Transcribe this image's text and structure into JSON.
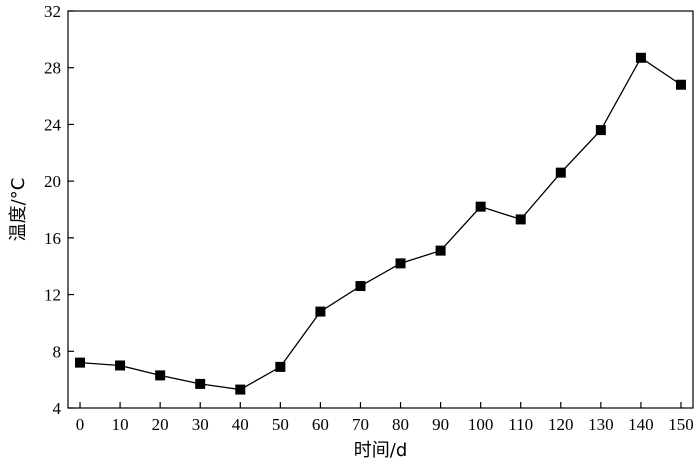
{
  "chart_data": {
    "type": "line",
    "xlabel": "时间/d",
    "ylabel": "温度/°C",
    "xlim": [
      -3,
      153
    ],
    "ylim": [
      4,
      32
    ],
    "x_ticks": [
      0,
      10,
      20,
      30,
      40,
      50,
      60,
      70,
      80,
      90,
      100,
      110,
      120,
      130,
      140,
      150
    ],
    "y_ticks": [
      4,
      8,
      12,
      16,
      20,
      24,
      28,
      32
    ],
    "grid": false,
    "series": [
      {
        "marker": "square",
        "color": "#000000",
        "x": [
          0,
          10,
          20,
          30,
          40,
          50,
          60,
          70,
          80,
          90,
          100,
          110,
          120,
          130,
          140,
          150
        ],
        "y": [
          7.2,
          7.0,
          6.3,
          5.7,
          5.3,
          6.9,
          10.8,
          12.6,
          14.2,
          15.1,
          18.2,
          17.3,
          20.6,
          23.6,
          28.7,
          26.8
        ]
      }
    ]
  }
}
